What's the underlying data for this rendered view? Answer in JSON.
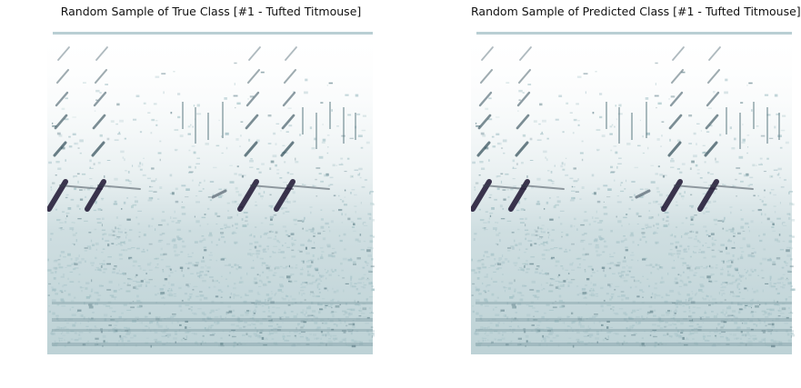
{
  "chart_data": [
    {
      "type": "heatmap",
      "title": "Random Sample of True Class [#1 - Tufted Titmouse]",
      "xlabel": "",
      "ylabel": "",
      "axes_visible": false,
      "colormap": "bone_r",
      "colors": {
        "low": "#ffffff",
        "mid": "#a7c3c8",
        "high": "#1c1330"
      }
    },
    {
      "type": "heatmap",
      "title": "Random Sample of Predicted Class [#1 - Tufted Titmouse]",
      "xlabel": "",
      "ylabel": "",
      "axes_visible": false,
      "colormap": "bone_r",
      "colors": {
        "low": "#ffffff",
        "mid": "#a7c3c8",
        "high": "#1c1330"
      }
    }
  ]
}
